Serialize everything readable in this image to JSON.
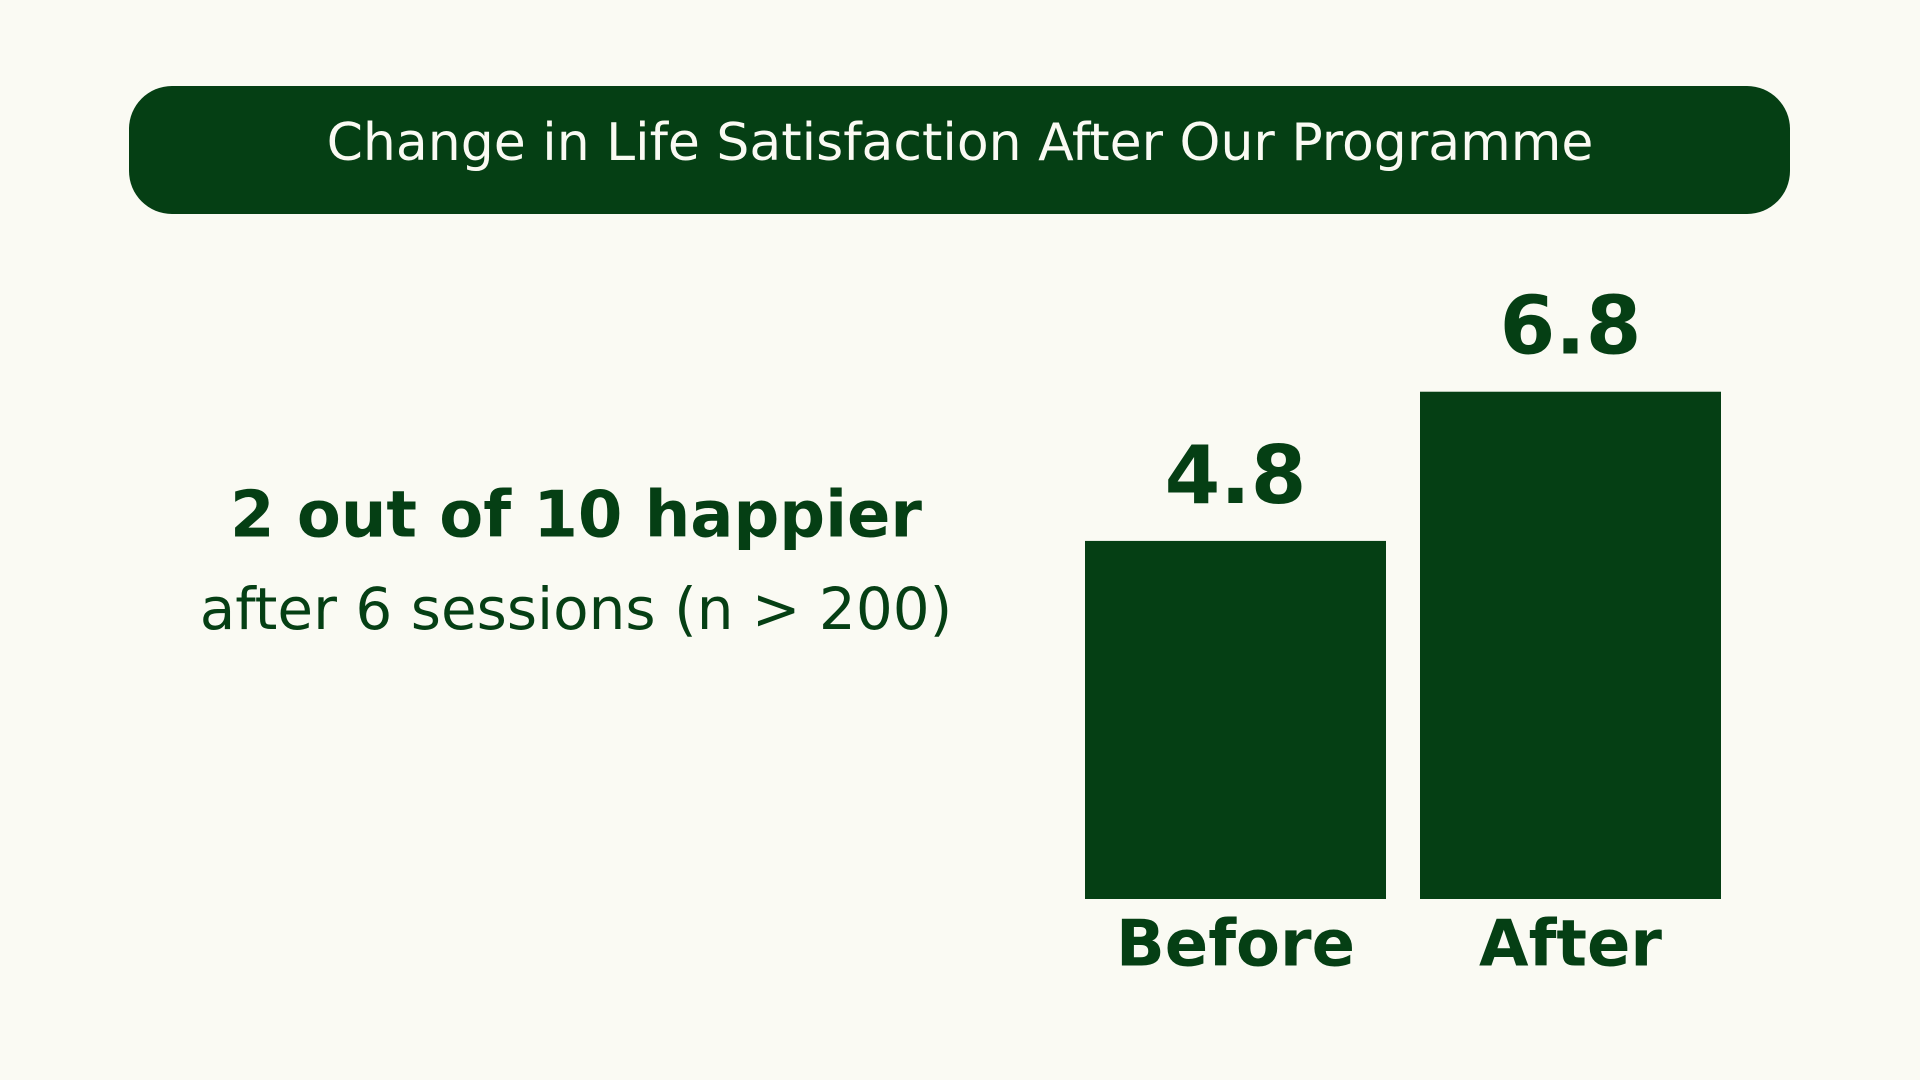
{
  "chart_data": {
    "type": "bar",
    "title": "Change in Life Satisfaction After Our Programme",
    "annotations": [
      "2 out of 10 happier",
      "after 6 sessions (n > 200)"
    ],
    "categories": [
      "Before",
      "After"
    ],
    "values": [
      4.8,
      6.8
    ],
    "color": "#053f14"
  }
}
